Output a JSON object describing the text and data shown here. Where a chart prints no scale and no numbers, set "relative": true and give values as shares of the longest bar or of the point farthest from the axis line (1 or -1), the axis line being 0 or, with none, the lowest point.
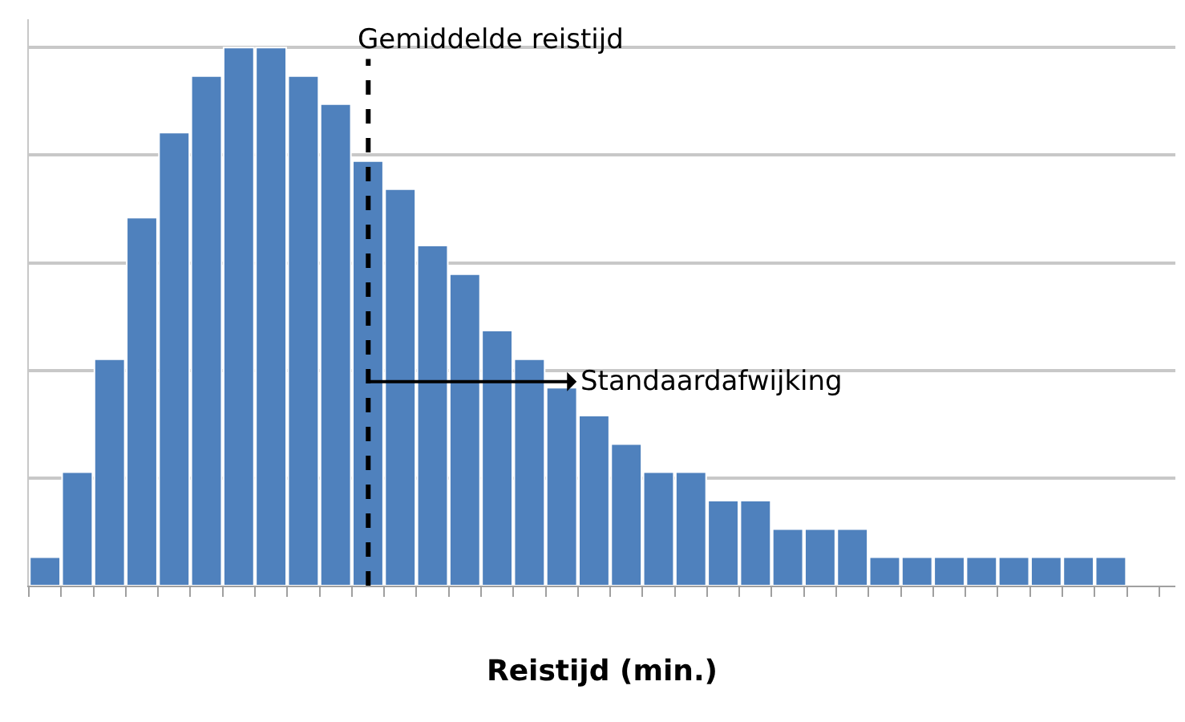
{
  "chart_data": {
    "type": "bar",
    "relative": true,
    "xlabel": "Reistijd (min.)",
    "color": "#4f81bd",
    "grid": "y",
    "legend": false,
    "categories": [
      null,
      null,
      null,
      null,
      null,
      null,
      null,
      null,
      null,
      null,
      null,
      null,
      null,
      null,
      null,
      null,
      null,
      null,
      null,
      null,
      null,
      null,
      null,
      null,
      null,
      null,
      null,
      null,
      null,
      null,
      null,
      null,
      null,
      null
    ],
    "values": [
      0.053,
      0.211,
      0.421,
      0.684,
      0.842,
      0.947,
      1,
      1,
      0.947,
      0.895,
      0.789,
      0.737,
      0.632,
      0.579,
      0.474,
      0.421,
      0.368,
      0.316,
      0.263,
      0.211,
      0.211,
      0.158,
      0.158,
      0.105,
      0.105,
      0.105,
      0.053,
      0.053,
      0.053,
      0.053,
      0.053,
      0.053,
      0.053,
      0.053
    ],
    "annotations": [
      "Gemiddelde reistijd",
      "Standaardafwijking"
    ]
  }
}
